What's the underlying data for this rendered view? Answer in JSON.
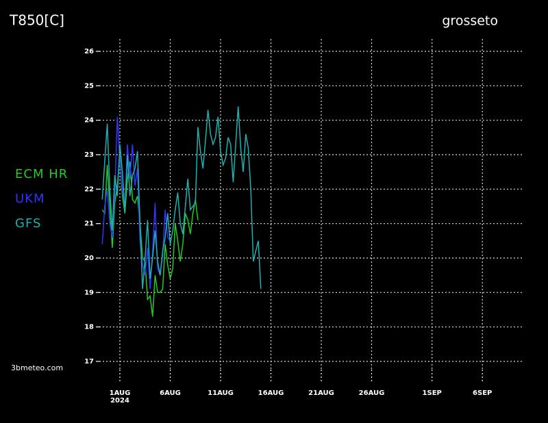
{
  "chart_data": {
    "type": "line",
    "title": "T850[C]",
    "subtitle": "grosseto",
    "credit": "3bmeteo.com",
    "x": [
      "2024-07-30T06:00",
      "2024-07-30T12:00",
      "2024-07-30T18:00",
      "2024-07-31T00:00",
      "2024-07-31T06:00",
      "2024-07-31T12:00",
      "2024-07-31T18:00",
      "2024-08-01T00:00",
      "2024-08-01T06:00",
      "2024-08-01T12:00",
      "2024-08-01T18:00",
      "2024-08-02T00:00",
      "2024-08-02T06:00",
      "2024-08-02T12:00",
      "2024-08-02T18:00",
      "2024-08-03T00:00",
      "2024-08-03T06:00",
      "2024-08-03T12:00",
      "2024-08-03T18:00",
      "2024-08-04T00:00",
      "2024-08-04T06:00",
      "2024-08-04T12:00",
      "2024-08-04T18:00",
      "2024-08-05T00:00",
      "2024-08-05T06:00",
      "2024-08-05T12:00",
      "2024-08-05T18:00",
      "2024-08-06T00:00",
      "2024-08-06T06:00",
      "2024-08-06T12:00",
      "2024-08-06T18:00",
      "2024-08-07T00:00",
      "2024-08-07T06:00",
      "2024-08-07T12:00",
      "2024-08-07T18:00",
      "2024-08-08T00:00",
      "2024-08-08T06:00",
      "2024-08-08T12:00",
      "2024-08-08T18:00",
      "2024-08-09T00:00",
      "2024-08-09T06:00",
      "2024-08-09T12:00",
      "2024-08-09T18:00",
      "2024-08-10T00:00",
      "2024-08-10T06:00",
      "2024-08-10T12:00",
      "2024-08-10T18:00",
      "2024-08-11T00:00",
      "2024-08-11T06:00",
      "2024-08-11T12:00",
      "2024-08-11T18:00",
      "2024-08-12T00:00",
      "2024-08-12T06:00",
      "2024-08-12T12:00",
      "2024-08-12T18:00",
      "2024-08-13T00:00",
      "2024-08-13T06:00",
      "2024-08-13T12:00",
      "2024-08-13T18:00",
      "2024-08-14T00:00",
      "2024-08-14T06:00",
      "2024-08-14T12:00",
      "2024-08-14T18:00",
      "2024-08-15T00:00"
    ],
    "series": [
      {
        "name": "ECM HR",
        "color": "#22cc22",
        "values": [
          21.4,
          21.3,
          22.7,
          21.5,
          20.3,
          21.6,
          22.1,
          23.0,
          21.8,
          21.3,
          22.3,
          22.8,
          21.7,
          21.6,
          21.8,
          21.0,
          20.0,
          19.9,
          18.8,
          18.9,
          18.3,
          19.5,
          19.0,
          19.0,
          19.1,
          20.4,
          19.8,
          19.4,
          19.7,
          21.0,
          20.5,
          19.9,
          20.4,
          21.3,
          21.1,
          20.7,
          21.3,
          21.7,
          21.1,
          null,
          null,
          null,
          null,
          null,
          null,
          null,
          null,
          null,
          null,
          null,
          null,
          null,
          null,
          null,
          null,
          null,
          null,
          null,
          null,
          null,
          null,
          null,
          null,
          null
        ]
      },
      {
        "name": "UKM",
        "color": "#3333ff",
        "values": [
          20.4,
          21.5,
          22.0,
          21.0,
          20.6,
          21.9,
          24.1,
          22.8,
          22.0,
          21.4,
          23.3,
          22.3,
          23.3,
          22.1,
          22.6,
          20.5,
          19.8,
          19.5,
          20.3,
          19.1,
          20.2,
          21.6,
          19.7,
          19.5,
          20.1,
          21.4,
          20.6,
          20.5,
          null,
          null,
          null,
          null,
          null,
          null,
          null,
          null,
          null,
          null,
          null,
          null,
          null,
          null,
          null,
          null,
          null,
          null,
          null,
          null,
          null,
          null,
          null,
          null,
          null,
          null,
          null,
          null,
          null,
          null,
          null,
          null,
          null,
          null,
          null,
          null
        ]
      },
      {
        "name": "GFS",
        "color": "#20b0b0",
        "values": [
          21.7,
          22.8,
          23.9,
          22.0,
          20.8,
          22.4,
          21.8,
          23.3,
          22.5,
          21.3,
          23.0,
          21.8,
          22.4,
          22.6,
          23.1,
          21.0,
          19.1,
          20.0,
          21.1,
          19.4,
          20.0,
          20.8,
          19.9,
          19.5,
          20.2,
          20.6,
          21.3,
          20.4,
          20.8,
          21.4,
          21.9,
          21.0,
          20.7,
          21.5,
          22.3,
          21.4,
          21.5,
          21.6,
          23.8,
          23.1,
          22.6,
          23.4,
          24.3,
          23.6,
          23.3,
          23.5,
          24.1,
          23.1,
          22.7,
          22.9,
          23.5,
          23.3,
          22.2,
          23.3,
          24.4,
          23.2,
          22.5,
          23.6,
          23.2,
          22.0,
          19.9,
          20.2,
          20.5,
          19.1
        ]
      }
    ],
    "xlim": [
      "2024-07-30T00:00",
      "2024-09-10T00:00"
    ],
    "xticks": [
      {
        "value": "2024-08-01T00:00",
        "label": "1AUG"
      },
      {
        "value": "2024-08-06T00:00",
        "label": "6AUG"
      },
      {
        "value": "2024-08-11T00:00",
        "label": "11AUG"
      },
      {
        "value": "2024-08-16T00:00",
        "label": "16AUG"
      },
      {
        "value": "2024-08-21T00:00",
        "label": "21AUG"
      },
      {
        "value": "2024-08-26T00:00",
        "label": "26AUG"
      },
      {
        "value": "2024-09-01T00:00",
        "label": "1SEP"
      },
      {
        "value": "2024-09-06T00:00",
        "label": "6SEP"
      }
    ],
    "xtick_sublabel": "2024",
    "ylim": [
      17,
      26
    ],
    "yticks": [
      17,
      18,
      19,
      20,
      21,
      22,
      23,
      24,
      25,
      26
    ],
    "grid": true
  }
}
